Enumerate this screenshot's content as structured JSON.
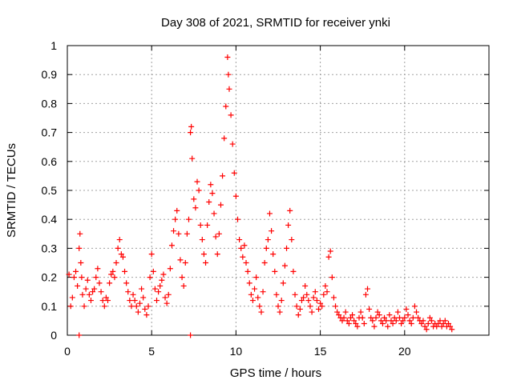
{
  "chart_data": {
    "type": "scatter",
    "title": "Day 308 of 2021, SRMTID for receiver ynki",
    "xlabel": "GPS time / hours",
    "ylabel": "SRMTID / TECUs",
    "xlim": [
      0,
      25
    ],
    "ylim": [
      0,
      1
    ],
    "xticks": [
      0,
      5,
      10,
      15,
      20
    ],
    "yticks": [
      0,
      0.1,
      0.2,
      0.3,
      0.4,
      0.5,
      0.6,
      0.7,
      0.8,
      0.9,
      1
    ],
    "xtick_labels": [
      "0",
      "5",
      "10",
      "15",
      "20"
    ],
    "ytick_labels": [
      "0",
      "0.1",
      "0.2",
      "0.3",
      "0.4",
      "0.5",
      "0.6",
      "0.7",
      "0.8",
      "0.9",
      "1"
    ],
    "grid": true,
    "marker": "plus",
    "color": "#ff0000",
    "series": [
      {
        "name": "SRMTID",
        "points": [
          [
            0.1,
            0.21
          ],
          [
            0.2,
            0.1
          ],
          [
            0.3,
            0.13
          ],
          [
            0.4,
            0.2
          ],
          [
            0.5,
            0.22
          ],
          [
            0.6,
            0.17
          ],
          [
            0.7,
            0.3
          ],
          [
            0.75,
            0.35
          ],
          [
            0.8,
            0.25
          ],
          [
            0.85,
            0.2
          ],
          [
            0.9,
            0.14
          ],
          [
            1.0,
            0.1
          ],
          [
            1.1,
            0.16
          ],
          [
            1.2,
            0.19
          ],
          [
            1.3,
            0.14
          ],
          [
            1.4,
            0.12
          ],
          [
            1.5,
            0.15
          ],
          [
            1.6,
            0.16
          ],
          [
            1.7,
            0.2
          ],
          [
            1.8,
            0.23
          ],
          [
            1.9,
            0.18
          ],
          [
            2.0,
            0.15
          ],
          [
            2.1,
            0.12
          ],
          [
            2.2,
            0.1
          ],
          [
            2.3,
            0.13
          ],
          [
            2.4,
            0.12
          ],
          [
            2.5,
            0.18
          ],
          [
            2.6,
            0.21
          ],
          [
            2.7,
            0.22
          ],
          [
            2.8,
            0.2
          ],
          [
            2.9,
            0.25
          ],
          [
            3.0,
            0.3
          ],
          [
            3.1,
            0.33
          ],
          [
            3.2,
            0.28
          ],
          [
            3.3,
            0.27
          ],
          [
            3.4,
            0.22
          ],
          [
            3.5,
            0.18
          ],
          [
            3.6,
            0.15
          ],
          [
            3.7,
            0.12
          ],
          [
            3.8,
            0.1
          ],
          [
            3.9,
            0.14
          ],
          [
            4.0,
            0.12
          ],
          [
            4.1,
            0.1
          ],
          [
            4.2,
            0.08
          ],
          [
            4.3,
            0.11
          ],
          [
            4.4,
            0.16
          ],
          [
            4.5,
            0.13
          ],
          [
            4.6,
            0.09
          ],
          [
            4.7,
            0.07
          ],
          [
            4.8,
            0.1
          ],
          [
            4.9,
            0.2
          ],
          [
            5.0,
            0.28
          ],
          [
            5.1,
            0.22
          ],
          [
            5.2,
            0.16
          ],
          [
            5.3,
            0.12
          ],
          [
            5.4,
            0.15
          ],
          [
            5.5,
            0.17
          ],
          [
            5.6,
            0.19
          ],
          [
            5.7,
            0.21
          ],
          [
            5.8,
            0.13
          ],
          [
            5.9,
            0.11
          ],
          [
            6.0,
            0.14
          ],
          [
            6.1,
            0.23
          ],
          [
            6.2,
            0.31
          ],
          [
            6.3,
            0.36
          ],
          [
            6.4,
            0.4
          ],
          [
            6.5,
            0.43
          ],
          [
            6.6,
            0.35
          ],
          [
            6.7,
            0.26
          ],
          [
            6.8,
            0.2
          ],
          [
            6.9,
            0.17
          ],
          [
            7.0,
            0.25
          ],
          [
            7.1,
            0.35
          ],
          [
            7.2,
            0.4
          ],
          [
            7.3,
            0.7
          ],
          [
            7.35,
            0.72
          ],
          [
            7.4,
            0.61
          ],
          [
            7.5,
            0.47
          ],
          [
            7.6,
            0.44
          ],
          [
            7.7,
            0.53
          ],
          [
            7.8,
            0.5
          ],
          [
            7.9,
            0.38
          ],
          [
            8.0,
            0.33
          ],
          [
            8.1,
            0.28
          ],
          [
            8.2,
            0.25
          ],
          [
            8.3,
            0.38
          ],
          [
            8.4,
            0.46
          ],
          [
            8.5,
            0.52
          ],
          [
            8.6,
            0.49
          ],
          [
            8.7,
            0.42
          ],
          [
            8.8,
            0.34
          ],
          [
            8.9,
            0.28
          ],
          [
            9.0,
            0.35
          ],
          [
            9.1,
            0.45
          ],
          [
            9.2,
            0.55
          ],
          [
            9.3,
            0.68
          ],
          [
            9.4,
            0.79
          ],
          [
            9.5,
            0.96
          ],
          [
            9.55,
            0.9
          ],
          [
            9.6,
            0.85
          ],
          [
            9.7,
            0.76
          ],
          [
            9.8,
            0.66
          ],
          [
            9.9,
            0.56
          ],
          [
            10.0,
            0.48
          ],
          [
            10.1,
            0.4
          ],
          [
            10.2,
            0.33
          ],
          [
            10.3,
            0.3
          ],
          [
            10.4,
            0.27
          ],
          [
            10.5,
            0.31
          ],
          [
            10.6,
            0.25
          ],
          [
            10.7,
            0.22
          ],
          [
            10.8,
            0.18
          ],
          [
            10.9,
            0.14
          ],
          [
            11.0,
            0.12
          ],
          [
            11.1,
            0.16
          ],
          [
            11.2,
            0.2
          ],
          [
            11.3,
            0.13
          ],
          [
            11.4,
            0.1
          ],
          [
            11.5,
            0.08
          ],
          [
            11.6,
            0.15
          ],
          [
            11.7,
            0.25
          ],
          [
            11.8,
            0.3
          ],
          [
            11.9,
            0.33
          ],
          [
            12.0,
            0.42
          ],
          [
            12.1,
            0.36
          ],
          [
            12.2,
            0.28
          ],
          [
            12.3,
            0.22
          ],
          [
            12.4,
            0.14
          ],
          [
            12.5,
            0.1
          ],
          [
            12.6,
            0.08
          ],
          [
            12.7,
            0.12
          ],
          [
            12.8,
            0.18
          ],
          [
            12.9,
            0.24
          ],
          [
            13.0,
            0.3
          ],
          [
            13.1,
            0.38
          ],
          [
            13.2,
            0.43
          ],
          [
            13.3,
            0.33
          ],
          [
            13.4,
            0.22
          ],
          [
            13.5,
            0.14
          ],
          [
            13.6,
            0.1
          ],
          [
            13.7,
            0.07
          ],
          [
            13.8,
            0.09
          ],
          [
            13.9,
            0.12
          ],
          [
            14.0,
            0.13
          ],
          [
            14.1,
            0.17
          ],
          [
            14.2,
            0.14
          ],
          [
            14.3,
            0.12
          ],
          [
            14.4,
            0.1
          ],
          [
            14.5,
            0.08
          ],
          [
            14.6,
            0.13
          ],
          [
            14.7,
            0.15
          ],
          [
            14.8,
            0.12
          ],
          [
            14.9,
            0.09
          ],
          [
            15.0,
            0.11
          ],
          [
            15.1,
            0.1
          ],
          [
            15.2,
            0.14
          ],
          [
            15.3,
            0.17
          ],
          [
            15.4,
            0.15
          ],
          [
            15.5,
            0.27
          ],
          [
            15.6,
            0.29
          ],
          [
            15.7,
            0.2
          ],
          [
            15.8,
            0.13
          ],
          [
            15.9,
            0.1
          ],
          [
            16.0,
            0.08
          ],
          [
            16.1,
            0.07
          ],
          [
            16.2,
            0.06
          ],
          [
            16.3,
            0.05
          ],
          [
            16.4,
            0.06
          ],
          [
            16.5,
            0.08
          ],
          [
            16.6,
            0.05
          ],
          [
            16.7,
            0.04
          ],
          [
            16.8,
            0.06
          ],
          [
            16.9,
            0.07
          ],
          [
            17.0,
            0.05
          ],
          [
            17.1,
            0.04
          ],
          [
            17.2,
            0.03
          ],
          [
            17.3,
            0.06
          ],
          [
            17.4,
            0.08
          ],
          [
            17.5,
            0.06
          ],
          [
            17.6,
            0.04
          ],
          [
            17.7,
            0.14
          ],
          [
            17.8,
            0.16
          ],
          [
            17.9,
            0.09
          ],
          [
            18.0,
            0.06
          ],
          [
            18.1,
            0.05
          ],
          [
            18.2,
            0.03
          ],
          [
            18.3,
            0.06
          ],
          [
            18.4,
            0.08
          ],
          [
            18.5,
            0.07
          ],
          [
            18.6,
            0.05
          ],
          [
            18.7,
            0.04
          ],
          [
            18.8,
            0.06
          ],
          [
            18.9,
            0.05
          ],
          [
            19.0,
            0.03
          ],
          [
            19.1,
            0.07
          ],
          [
            19.2,
            0.05
          ],
          [
            19.3,
            0.04
          ],
          [
            19.4,
            0.06
          ],
          [
            19.5,
            0.05
          ],
          [
            19.6,
            0.08
          ],
          [
            19.7,
            0.06
          ],
          [
            19.8,
            0.04
          ],
          [
            19.9,
            0.05
          ],
          [
            20.0,
            0.06
          ],
          [
            20.1,
            0.09
          ],
          [
            20.2,
            0.07
          ],
          [
            20.3,
            0.05
          ],
          [
            20.4,
            0.04
          ],
          [
            20.5,
            0.06
          ],
          [
            20.6,
            0.1
          ],
          [
            20.7,
            0.08
          ],
          [
            20.8,
            0.06
          ],
          [
            20.9,
            0.05
          ],
          [
            21.0,
            0.04
          ],
          [
            21.1,
            0.05
          ],
          [
            21.2,
            0.03
          ],
          [
            21.3,
            0.02
          ],
          [
            21.4,
            0.04
          ],
          [
            21.5,
            0.06
          ],
          [
            21.6,
            0.05
          ],
          [
            21.7,
            0.03
          ],
          [
            21.8,
            0.04
          ],
          [
            21.9,
            0.03
          ],
          [
            22.0,
            0.04
          ],
          [
            22.1,
            0.05
          ],
          [
            22.2,
            0.03
          ],
          [
            22.3,
            0.04
          ],
          [
            22.4,
            0.05
          ],
          [
            22.5,
            0.03
          ],
          [
            22.6,
            0.04
          ],
          [
            22.7,
            0.03
          ],
          [
            22.8,
            0.02
          ],
          [
            0.7,
            0.0
          ],
          [
            7.3,
            0.0
          ]
        ]
      }
    ]
  }
}
